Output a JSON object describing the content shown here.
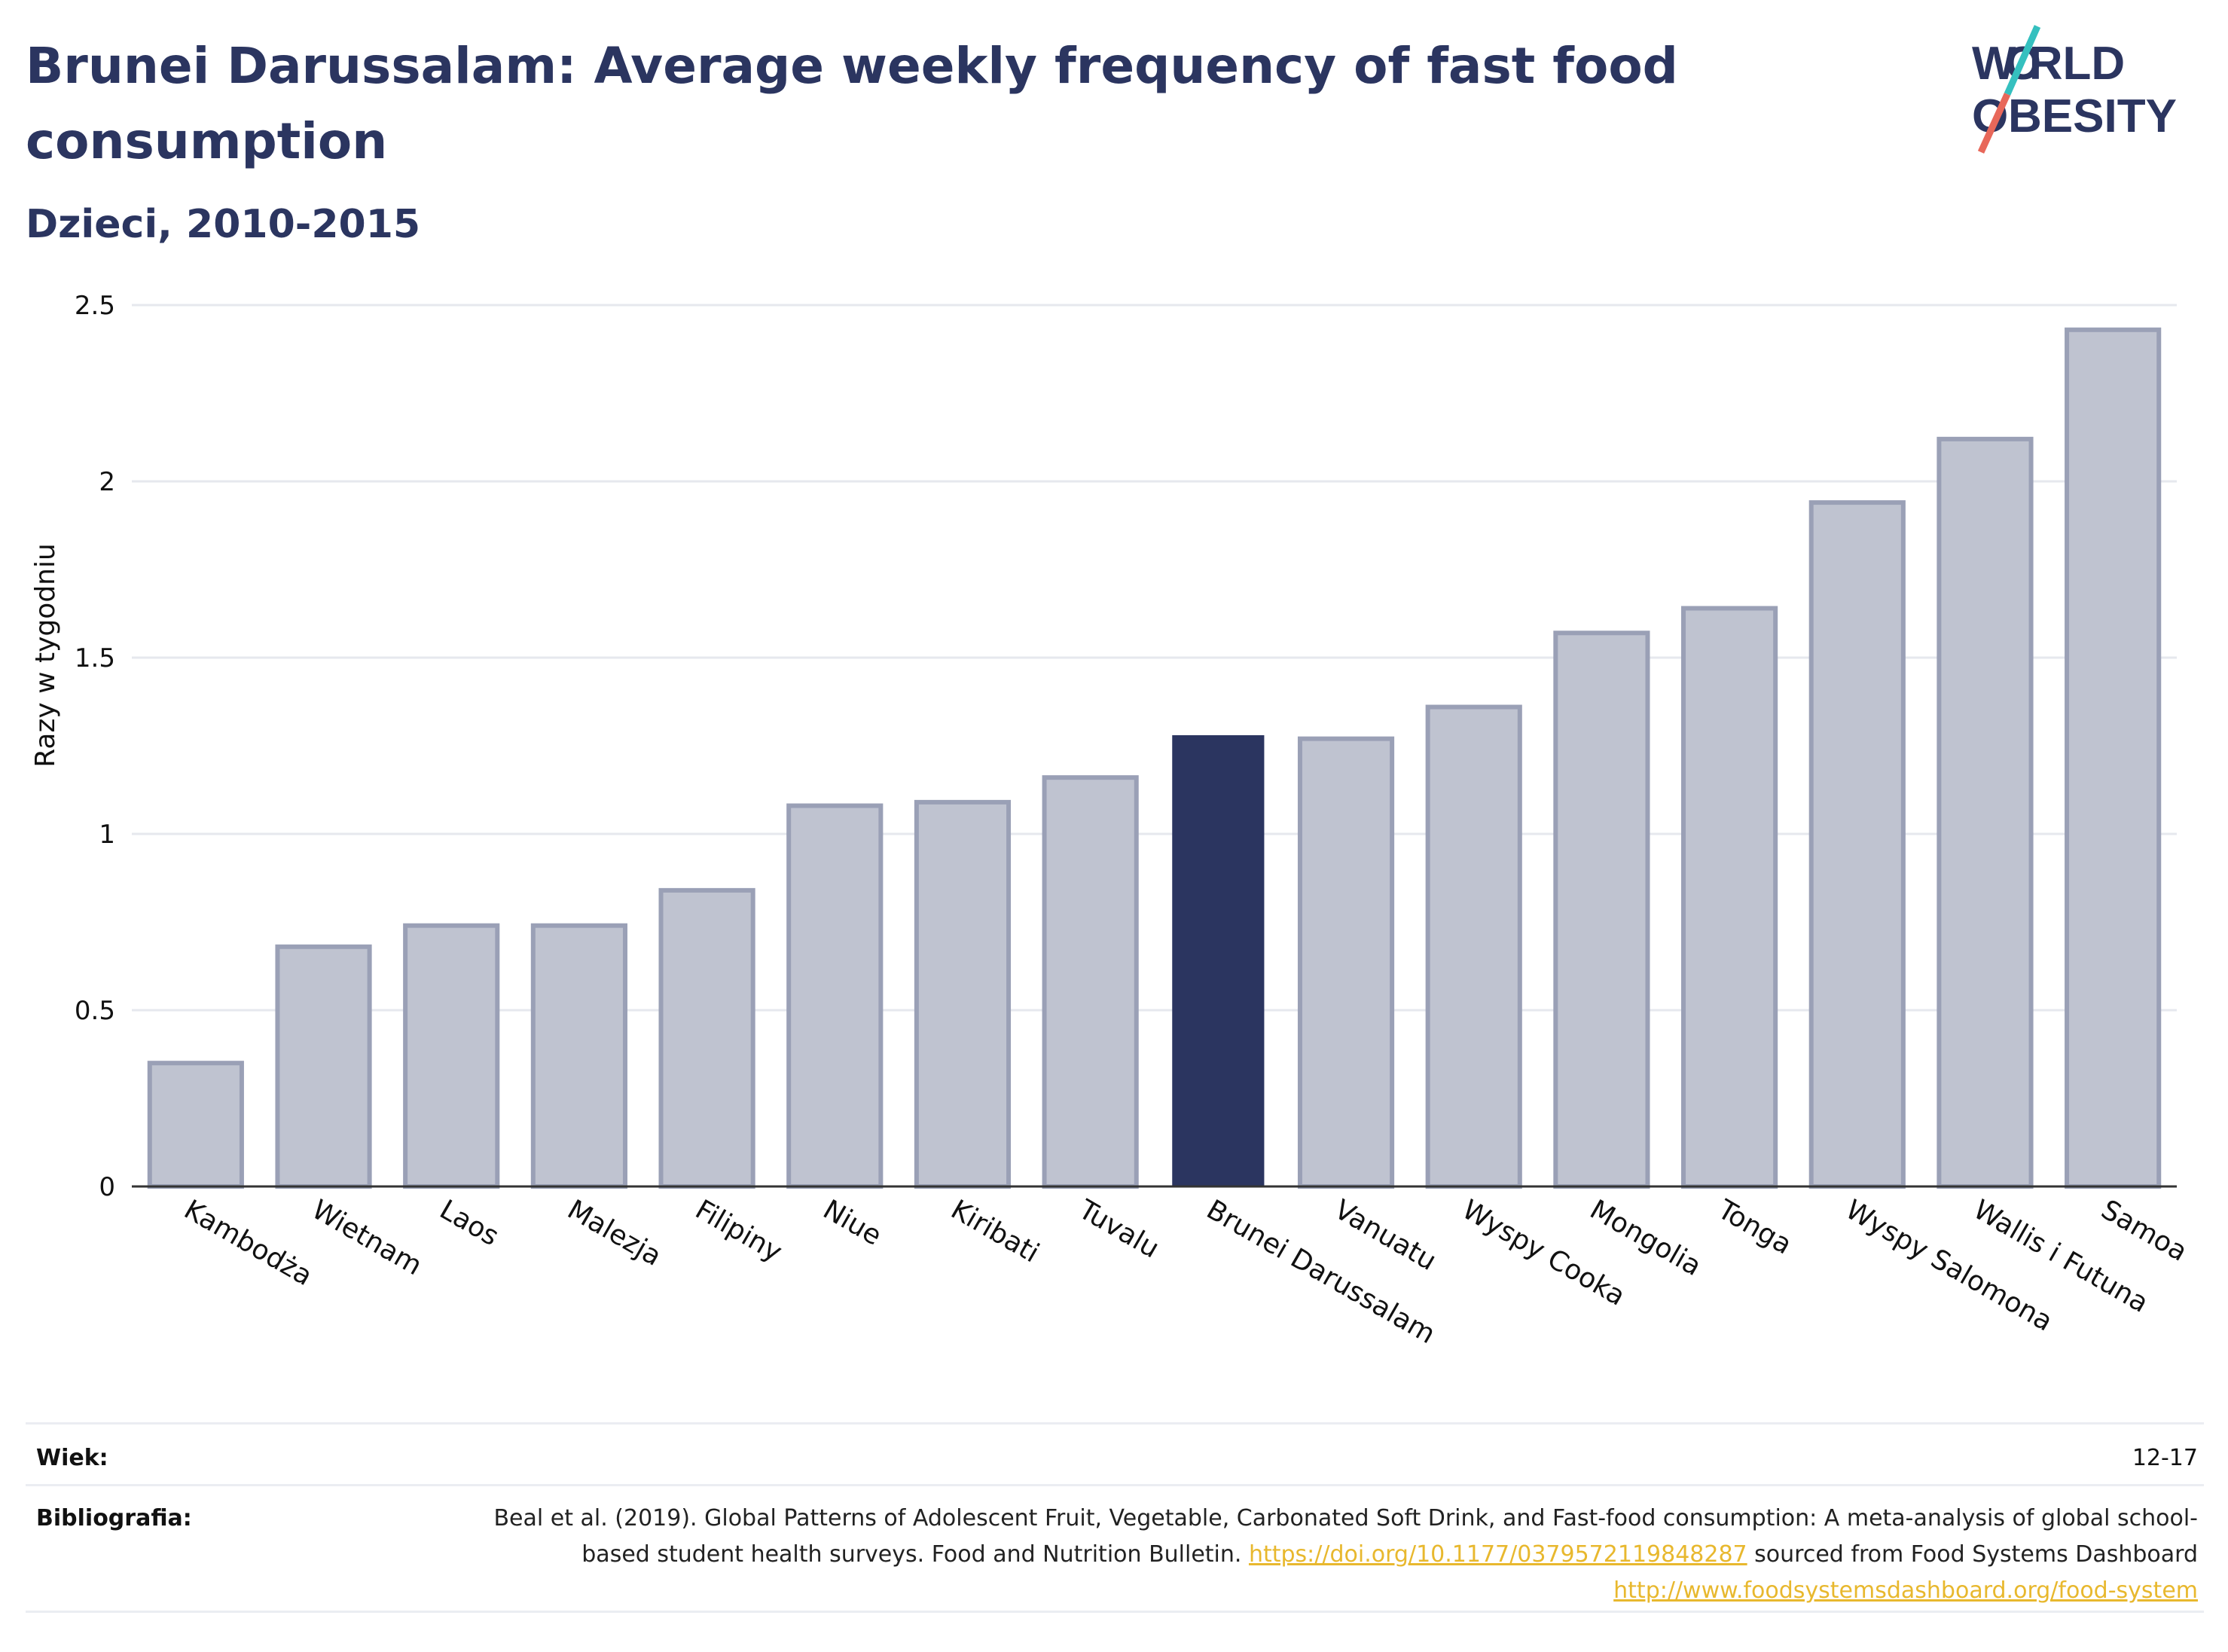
{
  "header": {
    "title": "Brunei Darussalam: Average weekly frequency of fast food consumption",
    "subtitle": "Dzieci, 2010-2015"
  },
  "logo": {
    "line1": "W RLD",
    "line2": "BESITY",
    "letter_o": "O",
    "colors": {
      "text": "#2b3560",
      "slash_top": "#35c0bf",
      "slash_bottom": "#e8685a"
    }
  },
  "chart_data": {
    "type": "bar",
    "title": "Brunei Darussalam: Average weekly frequency of fast food consumption",
    "subtitle": "Dzieci, 2010-2015",
    "xlabel": "",
    "ylabel": "Razy w tygodniu",
    "ylim": [
      0,
      2.5
    ],
    "yticks": [
      0,
      0.5,
      1,
      1.5,
      2,
      2.5
    ],
    "ytick_labels": [
      "0",
      "0.5",
      "1",
      "1.5",
      "2",
      "2.5"
    ],
    "grid": true,
    "categories": [
      "Kambodża",
      "Wietnam",
      "Laos",
      "Malezja",
      "Filipiny",
      "Niue",
      "Kiribati",
      "Tuvalu",
      "Brunei Darussalam",
      "Vanuatu",
      "Wyspy Cooka",
      "Mongolia",
      "Tonga",
      "Wyspy Salomona",
      "Wallis i Futuna",
      "Samoa"
    ],
    "values": [
      0.35,
      0.68,
      0.74,
      0.74,
      0.84,
      1.08,
      1.09,
      1.16,
      1.28,
      1.27,
      1.36,
      1.57,
      1.64,
      1.94,
      2.12,
      2.43
    ],
    "highlight": "Brunei Darussalam",
    "colors": {
      "bar": "#bfc3d0",
      "bar_border": "#9aa0b6",
      "highlight": "#2b3560",
      "grid": "#e6e8ee",
      "axis": "#333333"
    }
  },
  "meta": {
    "age_label": "Wiek:",
    "age_value": "12-17",
    "biblio_label": "Bibliografia:",
    "biblio_text_1": "Beal et al. (2019). Global Patterns of Adolescent Fruit, Vegetable, Carbonated Soft Drink, and Fast-food consumption: A meta-analysis of global school-based student health surveys. Food and Nutrition Bulletin. ",
    "biblio_link_1": "https://doi.org/10.1177/0379572119848287",
    "biblio_text_2": " sourced from Food Systems Dashboard ",
    "biblio_link_2": "http://www.foodsystemsdashboard.org/food-system"
  }
}
